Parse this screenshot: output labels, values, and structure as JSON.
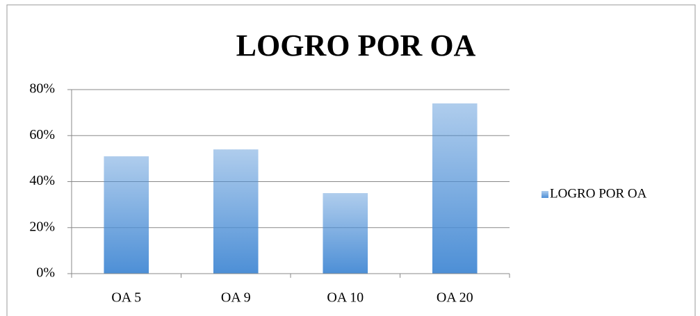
{
  "chart_data": {
    "type": "bar",
    "title": "LOGRO POR OA",
    "categories": [
      "OA 5",
      "OA 9",
      "OA 10",
      "OA 20"
    ],
    "series": [
      {
        "name": "LOGRO POR OA",
        "color": "#4d8fd6",
        "values": [
          51,
          54,
          35,
          74
        ]
      }
    ],
    "ylim": [
      0,
      80
    ],
    "yticks": [
      {
        "value": 0,
        "label": "0%"
      },
      {
        "value": 20,
        "label": "20%"
      },
      {
        "value": 40,
        "label": "40%"
      },
      {
        "value": 60,
        "label": "60%"
      },
      {
        "value": 80,
        "label": "80%"
      }
    ],
    "grid": true,
    "legend": "right"
  }
}
